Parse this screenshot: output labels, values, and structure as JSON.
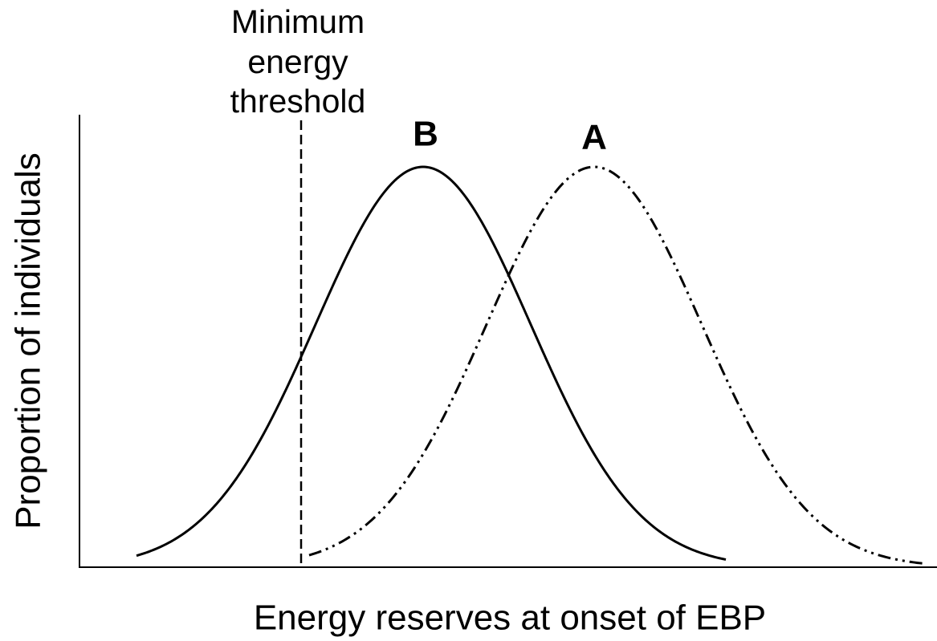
{
  "threshold_label": [
    "Minimum",
    "energy",
    "threshold"
  ],
  "curve_labels": {
    "b": "B",
    "a": "A"
  },
  "y_axis_label": "Proportion of individuals",
  "x_axis_label": "Energy reserves at onset of EBP"
}
